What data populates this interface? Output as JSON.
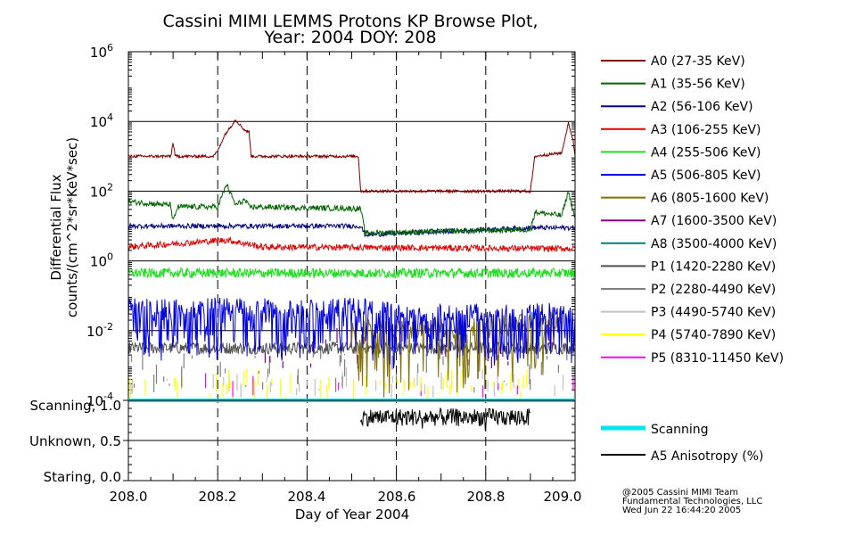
{
  "chart_data": [
    {
      "type": "line",
      "title_line1": "Cassini MIMI LEMMS Protons KP Browse Plot,",
      "title_line2": "Year: 2004 DOY: 208",
      "xlabel": "Day of Year 2004",
      "ylabel_line1": "Differential Flux",
      "ylabel_line2": "counts/(cm^2*sr*KeV*sec)",
      "xlim": [
        208.0,
        209.0
      ],
      "ylim_log10": [
        -4,
        6
      ],
      "y_scale": "log",
      "x_ticks": [
        "208.0",
        "208.2",
        "208.4",
        "208.6",
        "208.8",
        "209.0"
      ],
      "y_ticks": [
        {
          "base": "10",
          "exp": "6"
        },
        {
          "base": "10",
          "exp": "4"
        },
        {
          "base": "10",
          "exp": "2"
        },
        {
          "base": "10",
          "exp": "0"
        },
        {
          "base": "10",
          "exp": "-2"
        },
        {
          "base": "10",
          "exp": "-4"
        }
      ],
      "legend_placement": "right",
      "series": [
        {
          "name": "A0 (27-35 KeV)",
          "color": "#800000",
          "style": "line"
        },
        {
          "name": "A1 (35-56 KeV)",
          "color": "#006400",
          "style": "line"
        },
        {
          "name": "A2 (56-106 KeV)",
          "color": "#000080",
          "style": "line"
        },
        {
          "name": "A3 (106-255 KeV)",
          "color": "#e00000",
          "style": "line"
        },
        {
          "name": "A4 (255-506 KeV)",
          "color": "#22dd22",
          "style": "line"
        },
        {
          "name": "A5 (506-805 KeV)",
          "color": "#0000e0",
          "style": "spiky"
        },
        {
          "name": "A6 (805-1600 KeV)",
          "color": "#807000",
          "style": "spiky"
        },
        {
          "name": "A7 (1600-3500 KeV)",
          "color": "#800080",
          "style": "spiky"
        },
        {
          "name": "A8 (3500-4000 KeV)",
          "color": "#008080",
          "style": "sparse"
        },
        {
          "name": "P1 (1420-2280 KeV)",
          "color": "#505050",
          "style": "line"
        },
        {
          "name": "P2 (2280-4490 KeV)",
          "color": "#808080",
          "style": "sparse"
        },
        {
          "name": "P3 (4490-5740 KeV)",
          "color": "#c0c0c0",
          "style": "sparse"
        },
        {
          "name": "P4 (5740-7890 KeV)",
          "color": "#ffff00",
          "style": "sparse"
        },
        {
          "name": "P5 (8310-11450 KeV)",
          "color": "#ff00ff",
          "style": "sparse"
        }
      ],
      "levels": [
        {
          "name": "A0 (27-35 KeV)",
          "points": [
            [
              208.0,
              3.0
            ],
            [
              208.095,
              3.0
            ],
            [
              208.1,
              3.4
            ],
            [
              208.105,
              3.0
            ],
            [
              208.19,
              3.0
            ],
            [
              208.2,
              3.15
            ],
            [
              208.215,
              3.6
            ],
            [
              208.24,
              4.05
            ],
            [
              208.26,
              3.75
            ],
            [
              208.27,
              3.7
            ],
            [
              208.275,
              3.0
            ],
            [
              208.515,
              3.0
            ],
            [
              208.52,
              2.0
            ],
            [
              208.9,
              2.0
            ],
            [
              208.91,
              3.0
            ],
            [
              208.97,
              3.1
            ],
            [
              208.985,
              3.95
            ],
            [
              208.995,
              3.5
            ],
            [
              209.0,
              3.0
            ]
          ]
        },
        {
          "name": "A1 (35-56 KeV)",
          "points": [
            [
              208.0,
              1.7
            ],
            [
              208.095,
              1.6
            ],
            [
              208.1,
              1.1
            ],
            [
              208.11,
              1.55
            ],
            [
              208.2,
              1.55
            ],
            [
              208.22,
              2.2
            ],
            [
              208.24,
              1.6
            ],
            [
              208.26,
              1.75
            ],
            [
              208.27,
              1.55
            ],
            [
              208.52,
              1.5
            ],
            [
              208.53,
              0.8
            ],
            [
              208.9,
              0.9
            ],
            [
              208.91,
              1.4
            ],
            [
              208.97,
              1.3
            ],
            [
              208.985,
              2.0
            ],
            [
              209.0,
              1.2
            ]
          ]
        },
        {
          "name": "A2 (56-106 KeV)",
          "points": [
            [
              208.0,
              1.0
            ],
            [
              208.52,
              1.0
            ],
            [
              208.53,
              0.75
            ],
            [
              208.9,
              0.95
            ],
            [
              209.0,
              0.95
            ]
          ]
        },
        {
          "name": "A3 (106-255 KeV)",
          "points": [
            [
              208.0,
              0.4
            ],
            [
              208.22,
              0.6
            ],
            [
              208.3,
              0.4
            ],
            [
              209.0,
              0.35
            ]
          ]
        },
        {
          "name": "A4 (255-506 KeV)",
          "points": [
            [
              208.0,
              -0.35
            ],
            [
              209.0,
              -0.35
            ]
          ]
        },
        {
          "name": "A5 (506-805 KeV)",
          "points": [
            [
              208.0,
              -1.3
            ],
            [
              208.55,
              -1.3
            ],
            [
              208.6,
              -1.5
            ],
            [
              209.0,
              -1.4
            ]
          ]
        },
        {
          "name": "A6 (805-1600 KeV)",
          "points": [
            [
              208.5,
              -2.0
            ],
            [
              208.9,
              -1.8
            ],
            [
              208.97,
              -1.6
            ]
          ]
        },
        {
          "name": "P1 (1420-2280 KeV)",
          "points": [
            [
              208.0,
              -2.5
            ],
            [
              209.0,
              -2.5
            ]
          ]
        }
      ]
    },
    {
      "type": "line",
      "y_ticks": [
        "Scanning, 1.0",
        "Unknown, 0.5",
        "Staring, 0.0"
      ],
      "ylim": [
        0.0,
        1.0
      ],
      "series": [
        {
          "name": "Scanning",
          "color": "#00e5ee",
          "value": 1.0
        },
        {
          "name": "A5 Anisotropy (%)",
          "color": "#000000",
          "x_range": [
            208.52,
            208.9
          ],
          "value_range": [
            0.68,
            0.9
          ]
        }
      ]
    }
  ],
  "credits": {
    "line1": "@2005 Cassini MIMI Team",
    "line2": "Fundamental Technologies, LLC",
    "line3": "Wed Jun 22 16:44:20 2005"
  }
}
